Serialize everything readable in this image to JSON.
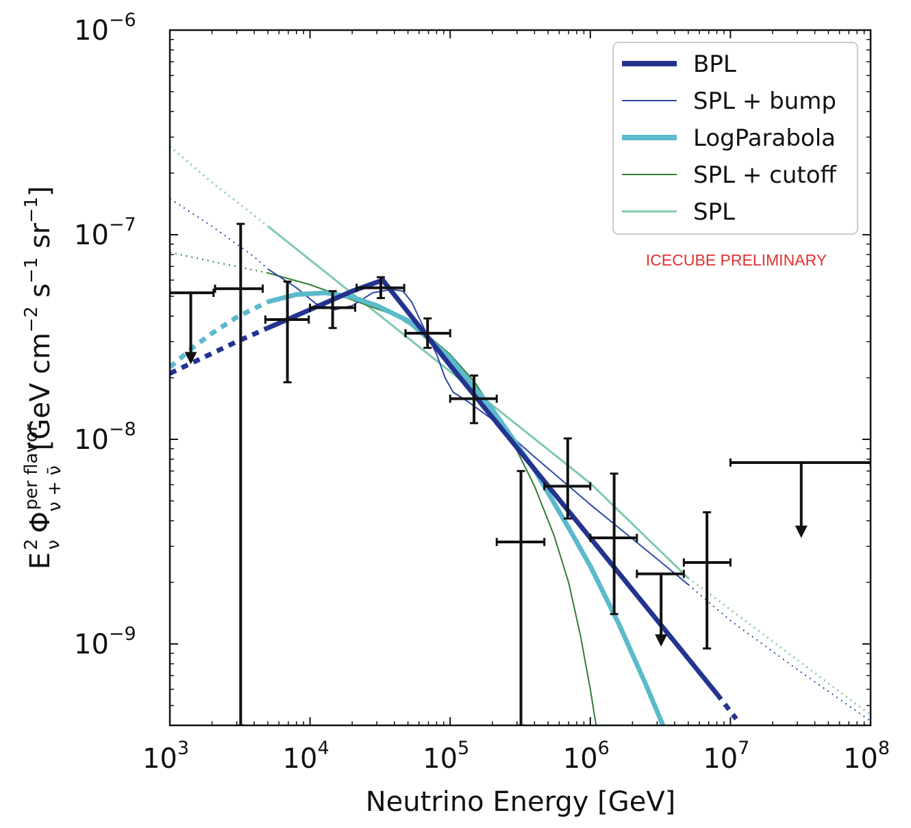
{
  "chart_data": {
    "type": "scatter",
    "title": "",
    "xlabel": "Neutrino Energy [GeV]",
    "ylabel_parts": {
      "e": "E",
      "e_sup": "2",
      "e_sub": "ν",
      "phi": "Φ",
      "phi_sup": "per flavor",
      "phi_sub": "ν + ν̄",
      "units": "[GeV cm",
      "units_exp1": "−2",
      "units_s": " s",
      "units_exp2": "−1",
      "units_sr": " sr",
      "units_exp3": "−1",
      "units_close": "]"
    },
    "x_scale": "log",
    "y_scale": "log",
    "xlim": [
      1000,
      100000000
    ],
    "ylim": [
      4e-10,
      1e-06
    ],
    "x_ticks": [
      {
        "value": 1000,
        "base": "10",
        "exp": "3"
      },
      {
        "value": 10000,
        "base": "10",
        "exp": "4"
      },
      {
        "value": 100000,
        "base": "10",
        "exp": "5"
      },
      {
        "value": 1000000,
        "base": "10",
        "exp": "6"
      },
      {
        "value": 10000000,
        "base": "10",
        "exp": "7"
      },
      {
        "value": 100000000,
        "base": "10",
        "exp": "8"
      }
    ],
    "y_ticks": [
      {
        "value": 1e-09,
        "base": "10",
        "exp": "−9"
      },
      {
        "value": 1e-08,
        "base": "10",
        "exp": "−8"
      },
      {
        "value": 1e-07,
        "base": "10",
        "exp": "−7"
      },
      {
        "value": 1e-06,
        "base": "10",
        "exp": "−6"
      }
    ],
    "legend_position": "top-right",
    "grid": false,
    "annotation": {
      "text": "ICECUBE PRELIMINARY",
      "color": "#e03030"
    },
    "series": [
      {
        "name": "BPL",
        "color": "#23338f",
        "kind": "model",
        "width": 7,
        "legend_width": 8,
        "dotted_low": [
          [
            1000,
            2.1e-08
          ],
          [
            3000,
            3e-08
          ],
          [
            5000,
            3.5e-08
          ]
        ],
        "solid": [
          [
            5000,
            3.5e-08
          ],
          [
            10000,
            4.3e-08
          ],
          [
            20000,
            5.3e-08
          ],
          [
            33000,
            6e-08
          ],
          [
            100000,
            2.3e-08
          ],
          [
            1000000,
            3.3e-09
          ],
          [
            8000000,
            5.7e-10
          ]
        ],
        "dotted_high": [
          [
            8000000,
            5.7e-10
          ],
          [
            11000000,
            4.3e-10
          ]
        ]
      },
      {
        "name": "SPL + bump",
        "color": "#2c47a8",
        "kind": "model",
        "width": 2,
        "legend_width": 2,
        "dotted_low": [
          [
            1000,
            1.5e-07
          ],
          [
            2000,
            1.1e-07
          ],
          [
            4000,
            7.8e-08
          ],
          [
            5000,
            6.8e-08
          ]
        ],
        "solid": [
          [
            5000,
            6.8e-08
          ],
          [
            8000,
            5.5e-08
          ],
          [
            11000,
            4.6e-08
          ],
          [
            15000,
            4.3e-08
          ],
          [
            20000,
            4.5e-08
          ],
          [
            28000,
            5.2e-08
          ],
          [
            38000,
            5.4e-08
          ],
          [
            46000,
            5.3e-08
          ],
          [
            53000,
            4.7e-08
          ],
          [
            65000,
            3.5e-08
          ],
          [
            80000,
            2.6e-08
          ],
          [
            92000,
            2e-08
          ],
          [
            105000,
            1.7e-08
          ],
          [
            130000,
            1.55e-08
          ],
          [
            200000,
            1.25e-08
          ],
          [
            400000,
            8.2e-09
          ],
          [
            1000000,
            4.8e-09
          ],
          [
            3000000,
            2.6e-09
          ],
          [
            5000000,
            1.95e-09
          ]
        ],
        "dotted_high": [
          [
            5000000,
            1.95e-09
          ],
          [
            10000000,
            1.3e-09
          ],
          [
            30000000,
            7.5e-10
          ],
          [
            100000000,
            4.2e-10
          ]
        ]
      },
      {
        "name": "LogParabola",
        "color": "#5bbacb",
        "kind": "model",
        "width": 7,
        "legend_width": 8,
        "dotted_low": [
          [
            1000,
            2.25e-08
          ],
          [
            1500,
            2.85e-08
          ],
          [
            2000,
            3.3e-08
          ],
          [
            3000,
            3.95e-08
          ],
          [
            5000,
            4.7e-08
          ]
        ],
        "solid": [
          [
            5000,
            4.7e-08
          ],
          [
            8000,
            5.1e-08
          ],
          [
            13000,
            5.2e-08
          ],
          [
            20000,
            4.95e-08
          ],
          [
            30000,
            4.5e-08
          ],
          [
            50000,
            3.8e-08
          ],
          [
            100000,
            2.5e-08
          ],
          [
            200000,
            1.4e-08
          ],
          [
            400000,
            7.1e-09
          ],
          [
            700000,
            3.7e-09
          ],
          [
            1000000,
            2.4e-09
          ],
          [
            1600000,
            1.25e-09
          ],
          [
            2500000,
            6.3e-10
          ],
          [
            3300000,
            4e-10
          ]
        ],
        "dotted_high": []
      },
      {
        "name": "SPL + cutoff",
        "color": "#2e7d32",
        "kind": "model",
        "width": 2,
        "legend_width": 2,
        "dotted_low": [
          [
            1000,
            8.2e-08
          ],
          [
            2000,
            7.4e-08
          ],
          [
            5000,
            6.5e-08
          ]
        ],
        "solid": [
          [
            5000,
            6.5e-08
          ],
          [
            10000,
            5.7e-08
          ],
          [
            20000,
            4.8e-08
          ],
          [
            40000,
            4.05e-08
          ],
          [
            70000,
            3.2e-08
          ],
          [
            100000,
            2.6e-08
          ],
          [
            150000,
            1.9e-08
          ],
          [
            200000,
            1.4e-08
          ],
          [
            300000,
            8.8e-09
          ],
          [
            400000,
            5.9e-09
          ],
          [
            550000,
            3.4e-09
          ],
          [
            700000,
            2e-09
          ],
          [
            850000,
            1.1e-09
          ],
          [
            1000000,
            6e-10
          ],
          [
            1100000,
            4e-10
          ]
        ],
        "dotted_high": []
      },
      {
        "name": "SPL",
        "color": "#7ccba7",
        "kind": "model",
        "width": 3,
        "legend_width": 3,
        "dotted_low": [
          [
            1000,
            2.7e-07
          ],
          [
            2000,
            1.8e-07
          ],
          [
            5000,
            1.1e-07
          ]
        ],
        "solid": [
          [
            5000,
            1.1e-07
          ],
          [
            1000000,
            6.1e-09
          ],
          [
            5000000,
            2.1e-09
          ]
        ],
        "dotted_high": [
          [
            5000000,
            2.1e-09
          ],
          [
            100000000,
            4.5e-10
          ]
        ]
      }
    ],
    "data_points": [
      {
        "x": 1410,
        "y": 5.2e-08,
        "xerr": [
          1000,
          2050
        ],
        "upper_limit": true,
        "arrow_to": 2.4e-08
      },
      {
        "x": 3200,
        "y": 5.45e-08,
        "xerr": [
          2100,
          4600
        ],
        "yerr": [
          4e-10,
          1.13e-07
        ]
      },
      {
        "x": 6900,
        "y": 3.85e-08,
        "xerr": [
          4800,
          9800
        ],
        "yerr": [
          1.9e-08,
          5.9e-08
        ]
      },
      {
        "x": 14500,
        "y": 4.4e-08,
        "xerr": [
          10000,
          21000
        ],
        "yerr": [
          3.5e-08,
          5.3e-08
        ]
      },
      {
        "x": 32000,
        "y": 5.5e-08,
        "xerr": [
          21500,
          47000
        ],
        "yerr": [
          4.9e-08,
          6.2e-08
        ]
      },
      {
        "x": 69000,
        "y": 3.3e-08,
        "xerr": [
          48000,
          100000
        ],
        "yerr": [
          2.8e-08,
          3.9e-08
        ]
      },
      {
        "x": 148000,
        "y": 1.58e-08,
        "xerr": [
          100000,
          215000
        ],
        "yerr": [
          1.2e-08,
          2.05e-08
        ]
      },
      {
        "x": 320000,
        "y": 3.15e-09,
        "xerr": [
          215000,
          470000
        ],
        "yerr": [
          4e-10,
          7e-09
        ]
      },
      {
        "x": 690000,
        "y": 5.9e-09,
        "xerr": [
          470000,
          1000000
        ],
        "yerr": [
          4.1e-09,
          1.01e-08
        ]
      },
      {
        "x": 1480000,
        "y": 3.3e-09,
        "xerr": [
          1000000,
          2150000
        ],
        "yerr": [
          1.4e-09,
          6.8e-09
        ]
      },
      {
        "x": 3200000,
        "y": 2.2e-09,
        "xerr": [
          2150000,
          4650000
        ],
        "upper_limit": true,
        "arrow_to": 1e-09
      },
      {
        "x": 6800000,
        "y": 2.5e-09,
        "xerr": [
          4650000,
          10000000
        ],
        "yerr": [
          9.5e-10,
          4.4e-09
        ]
      },
      {
        "x": 32000000,
        "y": 7.7e-09,
        "xerr": [
          10000000,
          100000000
        ],
        "upper_limit": true,
        "arrow_to": 3.4e-09
      }
    ]
  }
}
